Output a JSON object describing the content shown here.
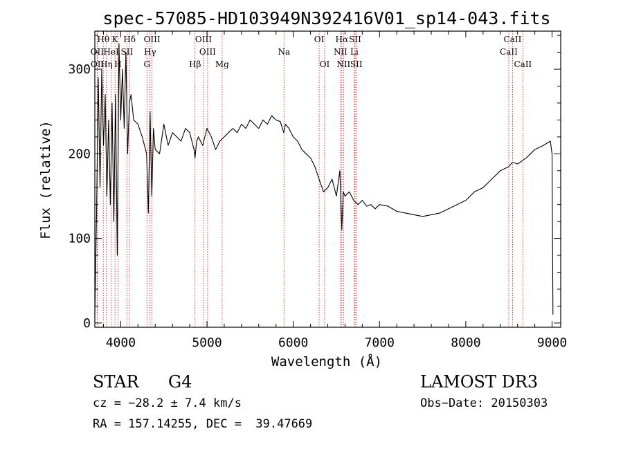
{
  "chart_data": {
    "type": "line",
    "title": "spec-57085-HD103949N392416V01_sp14-043.fits",
    "xlabel": "Wavelength (Å)",
    "ylabel": "Flux (relative)",
    "xlim": [
      3700,
      9100
    ],
    "ylim": [
      -5,
      345
    ],
    "xticks": [
      4000,
      5000,
      6000,
      7000,
      8000,
      9000
    ],
    "yticks": [
      0,
      100,
      200,
      300
    ],
    "series": [
      {
        "name": "flux",
        "x": [
          3700,
          3720,
          3740,
          3760,
          3780,
          3800,
          3820,
          3840,
          3860,
          3880,
          3900,
          3920,
          3940,
          3960,
          3980,
          4000,
          4020,
          4040,
          4060,
          4080,
          4100,
          4120,
          4150,
          4200,
          4250,
          4300,
          4320,
          4340,
          4360,
          4380,
          4400,
          4450,
          4500,
          4550,
          4600,
          4650,
          4700,
          4750,
          4800,
          4850,
          4861,
          4880,
          4900,
          4950,
          5000,
          5050,
          5100,
          5150,
          5200,
          5250,
          5300,
          5350,
          5400,
          5450,
          5500,
          5550,
          5600,
          5650,
          5700,
          5750,
          5800,
          5850,
          5890,
          5910,
          5950,
          6000,
          6050,
          6100,
          6150,
          6200,
          6250,
          6300,
          6350,
          6400,
          6450,
          6500,
          6540,
          6563,
          6580,
          6600,
          6650,
          6700,
          6750,
          6800,
          6850,
          6900,
          6950,
          7000,
          7100,
          7200,
          7300,
          7400,
          7500,
          7600,
          7700,
          7800,
          7900,
          8000,
          8100,
          8200,
          8300,
          8400,
          8500,
          8540,
          8600,
          8700,
          8800,
          8900,
          8980,
          9000,
          9010
        ],
        "values": [
          10,
          130,
          290,
          160,
          300,
          210,
          270,
          150,
          240,
          140,
          260,
          120,
          270,
          80,
          330,
          240,
          300,
          230,
          320,
          200,
          260,
          270,
          240,
          235,
          220,
          200,
          130,
          250,
          150,
          230,
          205,
          200,
          235,
          210,
          225,
          220,
          215,
          230,
          225,
          205,
          195,
          215,
          220,
          210,
          230,
          220,
          205,
          215,
          220,
          225,
          230,
          225,
          235,
          230,
          240,
          235,
          230,
          240,
          235,
          245,
          240,
          238,
          225,
          235,
          230,
          220,
          215,
          205,
          200,
          195,
          185,
          170,
          155,
          160,
          170,
          150,
          180,
          110,
          155,
          150,
          155,
          145,
          140,
          145,
          138,
          140,
          135,
          140,
          138,
          132,
          130,
          128,
          126,
          128,
          130,
          135,
          140,
          145,
          155,
          160,
          170,
          180,
          185,
          190,
          188,
          195,
          205,
          210,
          215,
          200,
          10
        ]
      }
    ],
    "spectral_lines": [
      {
        "label": "Hθ",
        "x": 3798,
        "row": 0
      },
      {
        "label": "K",
        "x": 3934,
        "row": 0
      },
      {
        "label": "Hδ",
        "x": 4102,
        "row": 0
      },
      {
        "label": "OIII",
        "x": 4363,
        "row": 0
      },
      {
        "label": "OIII",
        "x": 4959,
        "row": 0
      },
      {
        "label": "OI",
        "x": 6300,
        "row": 0
      },
      {
        "label": "Hα",
        "x": 6563,
        "row": 0
      },
      {
        "label": "SII",
        "x": 6717,
        "row": 0
      },
      {
        "label": "CaII",
        "x": 8542,
        "row": 0
      },
      {
        "label": "OII",
        "x": 3727,
        "row": 1
      },
      {
        "label": "HeI",
        "x": 3889,
        "row": 1
      },
      {
        "label": "SII",
        "x": 4072,
        "row": 1
      },
      {
        "label": "Hγ",
        "x": 4340,
        "row": 1
      },
      {
        "label": "OIII",
        "x": 5007,
        "row": 1
      },
      {
        "label": "Na",
        "x": 5893,
        "row": 1
      },
      {
        "label": "NII",
        "x": 6548,
        "row": 1
      },
      {
        "label": "Li",
        "x": 6708,
        "row": 1
      },
      {
        "label": "CaII",
        "x": 8498,
        "row": 1
      },
      {
        "label": "OII",
        "x": 3729,
        "row": 2
      },
      {
        "label": "Hη",
        "x": 3835,
        "row": 2
      },
      {
        "label": "H",
        "x": 3968,
        "row": 2
      },
      {
        "label": "G",
        "x": 4304,
        "row": 2
      },
      {
        "label": "Hβ",
        "x": 4861,
        "row": 2
      },
      {
        "label": "Mg",
        "x": 5175,
        "row": 2
      },
      {
        "label": "OI",
        "x": 6364,
        "row": 2
      },
      {
        "label": "NII",
        "x": 6583,
        "row": 2
      },
      {
        "label": "SII",
        "x": 6731,
        "row": 2
      },
      {
        "label": "CaII",
        "x": 8662,
        "row": 2
      }
    ]
  },
  "info": {
    "object_class": "STAR",
    "subclass": "G4",
    "survey": "LAMOST DR3",
    "redshift": "cz = −28.2 ± 7.4 km/s",
    "obs_date": "Obs−Date: 20150303",
    "coordinates": "RA = 157.14255, DEC =  39.47669"
  }
}
